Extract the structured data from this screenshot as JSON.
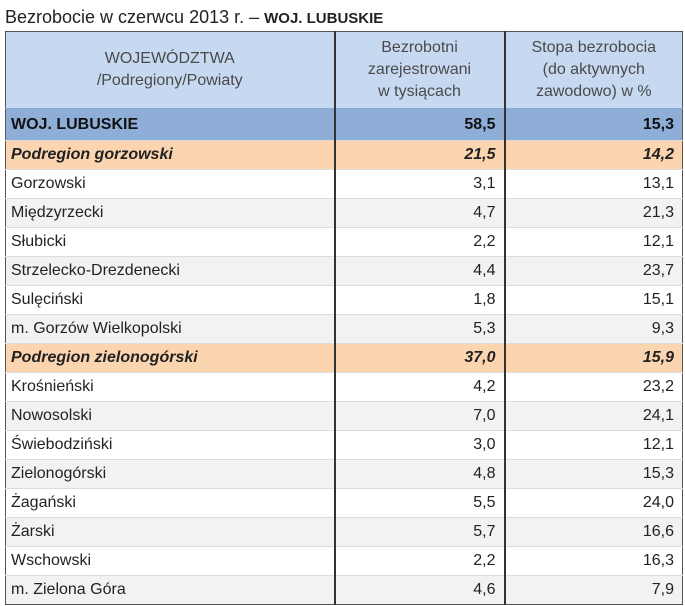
{
  "title": {
    "prefix": "Bezrobocie w czerwcu 2013 r. – ",
    "region": "WOJ. LUBUSKIE"
  },
  "headers": {
    "col1_line1": "WOJEWÓDZTWA",
    "col1_line2": "/Podregiony/Powiaty",
    "col2_line1": "Bezrobotni",
    "col2_line2": "zarejestrowani",
    "col2_line3": "w tysiącach",
    "col3_line1": "Stopa bezrobocia",
    "col3_line2": "(do aktywnych",
    "col3_line3": "zawodowo) w %"
  },
  "rows": [
    {
      "name": "WOJ. LUBUSKIE",
      "unemployed": "58,5",
      "rate": "15,3"
    },
    {
      "name": "Podregion gorzowski",
      "unemployed": "21,5",
      "rate": "14,2"
    },
    {
      "name": "Gorzowski",
      "unemployed": "3,1",
      "rate": "13,1"
    },
    {
      "name": "Międzyrzecki",
      "unemployed": "4,7",
      "rate": "21,3"
    },
    {
      "name": "Słubicki",
      "unemployed": "2,2",
      "rate": "12,1"
    },
    {
      "name": "Strzelecko-Drezdenecki",
      "unemployed": "4,4",
      "rate": "23,7"
    },
    {
      "name": "Sulęciński",
      "unemployed": "1,8",
      "rate": "15,1"
    },
    {
      "name": "m. Gorzów Wielkopolski",
      "unemployed": "5,3",
      "rate": "9,3"
    },
    {
      "name": "Podregion zielonogórski",
      "unemployed": "37,0",
      "rate": "15,9"
    },
    {
      "name": "Krośnieński",
      "unemployed": "4,2",
      "rate": "23,2"
    },
    {
      "name": "Nowosolski",
      "unemployed": "7,0",
      "rate": "24,1"
    },
    {
      "name": "Świebodziński",
      "unemployed": "3,0",
      "rate": "12,1"
    },
    {
      "name": "Zielonogórski",
      "unemployed": "4,8",
      "rate": "15,3"
    },
    {
      "name": "Żagański",
      "unemployed": "5,5",
      "rate": "24,0"
    },
    {
      "name": "Żarski",
      "unemployed": "5,7",
      "rate": "16,6"
    },
    {
      "name": "Wschowski",
      "unemployed": "2,2",
      "rate": "16,3"
    },
    {
      "name": "m. Zielona Góra",
      "unemployed": "4,6",
      "rate": "7,9"
    }
  ],
  "colors": {
    "header_bg": "#c6d9f1",
    "wojewodztwo_bg": "#8eaed8",
    "podregion_bg": "#fbd5b0",
    "alt_row_bg": "#f2f2f2"
  }
}
